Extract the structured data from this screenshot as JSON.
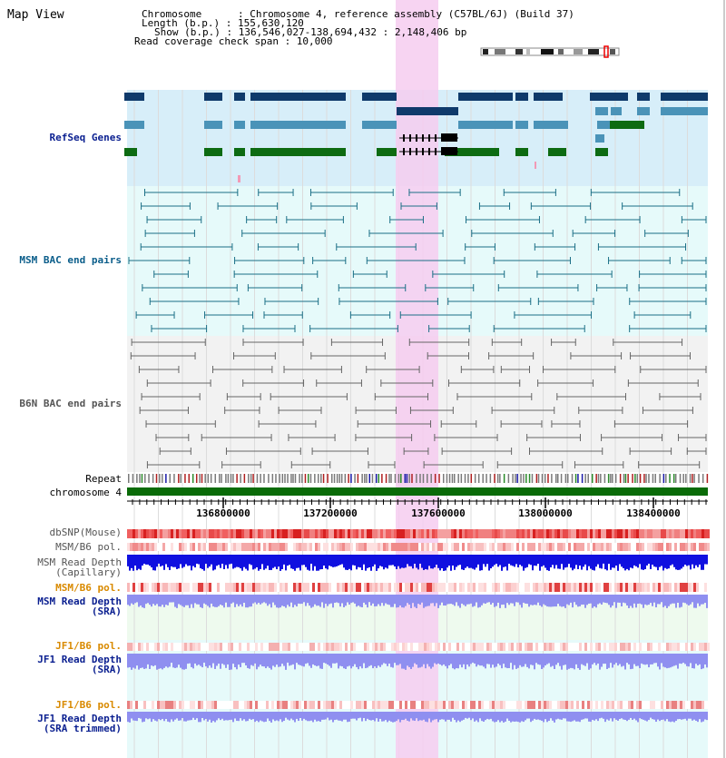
{
  "title": "Map View",
  "info": {
    "line1": "Chromosome      : Chromosome 4, reference assembly (C57BL/6J) (Build 37)",
    "line2": "Length (b.p.) : 155,630,120",
    "line3": "Show (b.p.) : 136,546,027-138,694,432 : 2,148,406 bp",
    "line4": "Read coverage check span : 10,000"
  },
  "tracks": {
    "refseq": "RefSeq Genes",
    "msm_bac": "MSM BAC end pairs",
    "b6n_bac": "B6N BAC end pairs",
    "repeat": "Repeat",
    "chromosome": "chromosome 4",
    "dbsnp": "dbSNP(Mouse)",
    "msm_b6_pol_1": "MSM/B6 pol.",
    "msm_depth_cap_1": "MSM Read Depth",
    "msm_depth_cap_2": "(Capillary)",
    "msm_b6_pol_2": "MSM/B6 pol.",
    "msm_depth_sra_1": "MSM Read Depth",
    "msm_depth_sra_2": "(SRA)",
    "jf1_b6_pol_1": "JF1/B6 pol.",
    "jf1_depth_sra_1": "JF1 Read Depth",
    "jf1_depth_sra_2": "(SRA)",
    "jf1_b6_pol_2": "JF1/B6 pol.",
    "jf1_depth_trim_1": "JF1 Read Depth",
    "jf1_depth_trim_2": "(SRA trimmed)"
  },
  "axis": {
    "ticks": [
      "136800000",
      "137200000",
      "137600000",
      "138000000",
      "138400000"
    ]
  },
  "colors": {
    "highlight": "#f6ccf0",
    "refseq_bg": "#d7eef9",
    "bac_bg": "#e6fafa",
    "gene_dark": "#0f3a6b",
    "gene_light": "#4a93b8",
    "gene_green": "#0d6b12",
    "chromosome": "#0a6b08",
    "depth_blue": "#1010e0",
    "depth_light": "#8f8ff0"
  }
}
